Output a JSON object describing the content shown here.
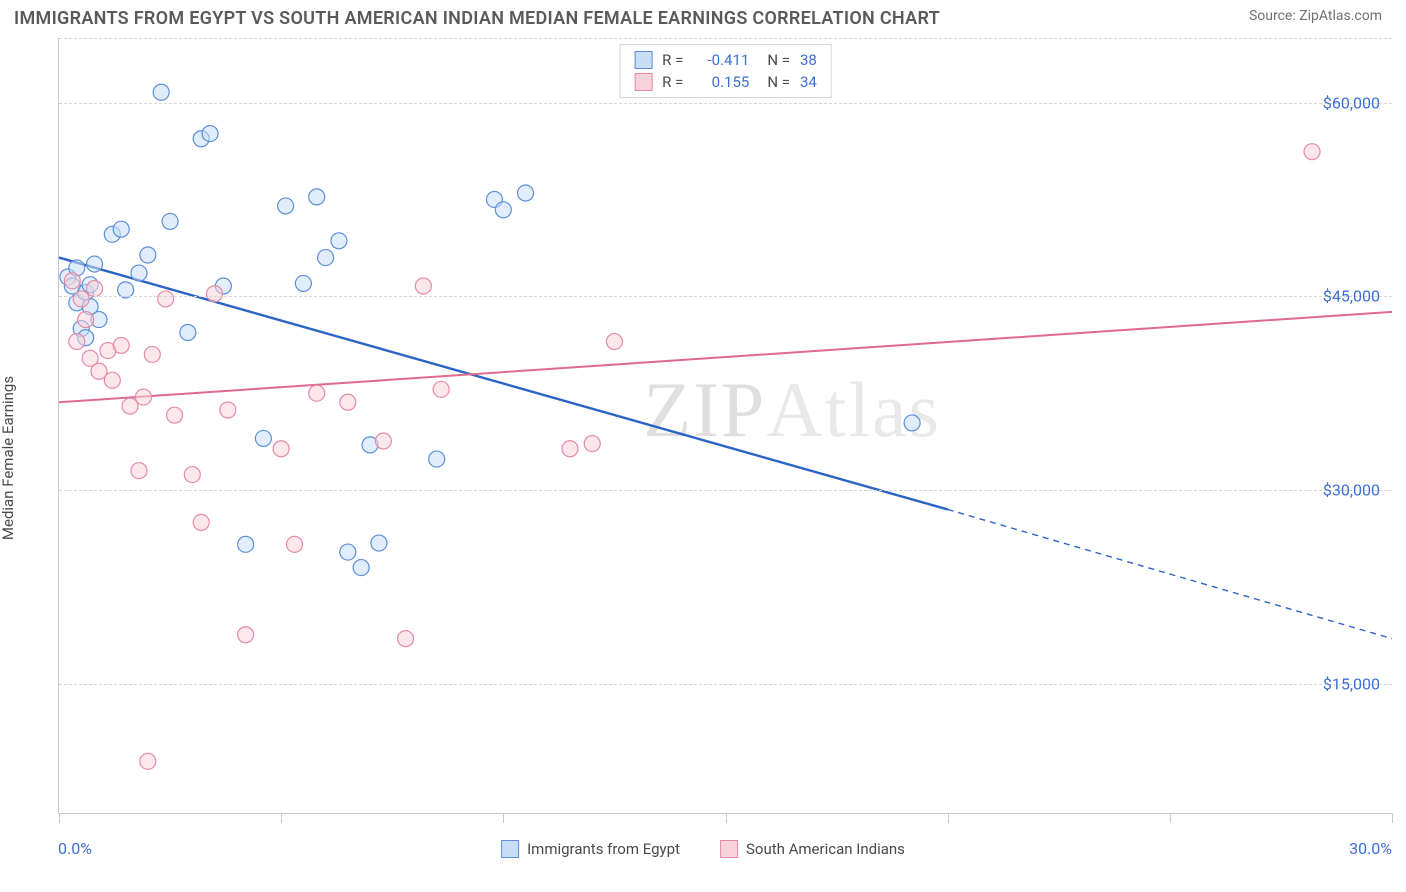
{
  "title": "IMMIGRANTS FROM EGYPT VS SOUTH AMERICAN INDIAN MEDIAN FEMALE EARNINGS CORRELATION CHART",
  "source": "Source: ZipAtlas.com",
  "watermark_zip": "ZIP",
  "watermark_atlas": "Atlas",
  "y_axis_label": "Median Female Earnings",
  "x_min_label": "0.0%",
  "x_max_label": "30.0%",
  "chart": {
    "type": "scatter",
    "xlim": [
      0,
      30
    ],
    "ylim": [
      5000,
      65000
    ],
    "y_gridlines": [
      15000,
      30000,
      45000,
      60000
    ],
    "y_tick_labels": [
      "$15,000",
      "$30,000",
      "$45,000",
      "$60,000"
    ],
    "x_ticks": [
      0,
      5,
      10,
      15,
      20,
      25,
      30
    ],
    "background_color": "#ffffff",
    "grid_color": "#d6d6d6",
    "axis_color": "#c8c8c8",
    "tick_label_color": "#3b6fd6",
    "marker_radius": 8,
    "marker_stroke_width": 1.2,
    "series": [
      {
        "name": "Immigrants from Egypt",
        "fill": "#c9def6",
        "stroke": "#5b8fd8",
        "fill_opacity": 0.55,
        "line_color": "#2c64c6",
        "line_width": 2.4,
        "R": "-0.411",
        "N": "38",
        "trend": {
          "x1": 0,
          "y1": 48000,
          "x2": 20,
          "y2": 28500,
          "x2_ext": 30,
          "y2_ext": 18500
        },
        "points": [
          [
            0.2,
            46500
          ],
          [
            0.3,
            45800
          ],
          [
            0.4,
            44500
          ],
          [
            0.4,
            47200
          ],
          [
            0.5,
            42500
          ],
          [
            0.6,
            45300
          ],
          [
            0.6,
            41800
          ],
          [
            0.7,
            44200
          ],
          [
            0.8,
            47500
          ],
          [
            0.9,
            43200
          ],
          [
            1.2,
            49800
          ],
          [
            1.4,
            50200
          ],
          [
            1.5,
            45500
          ],
          [
            1.8,
            46800
          ],
          [
            2.0,
            48200
          ],
          [
            2.3,
            60800
          ],
          [
            2.5,
            50800
          ],
          [
            2.9,
            42200
          ],
          [
            3.2,
            57200
          ],
          [
            3.4,
            57600
          ],
          [
            3.7,
            45800
          ],
          [
            4.2,
            25800
          ],
          [
            4.6,
            34000
          ],
          [
            5.1,
            52000
          ],
          [
            5.5,
            46000
          ],
          [
            5.8,
            52700
          ],
          [
            6.0,
            48000
          ],
          [
            6.3,
            49300
          ],
          [
            6.5,
            25200
          ],
          [
            6.8,
            24000
          ],
          [
            7.0,
            33500
          ],
          [
            7.2,
            25900
          ],
          [
            8.5,
            32400
          ],
          [
            9.8,
            52500
          ],
          [
            10.0,
            51700
          ],
          [
            10.5,
            53000
          ],
          [
            19.2,
            35200
          ],
          [
            0.7,
            45900
          ]
        ]
      },
      {
        "name": "South American Indians",
        "fill": "#f7d3dc",
        "stroke": "#e58aa5",
        "fill_opacity": 0.55,
        "line_color": "#e06a8e",
        "line_width": 2.0,
        "R": "0.155",
        "N": "34",
        "trend": {
          "x1": 0,
          "y1": 36800,
          "x2": 30,
          "y2": 43800
        },
        "points": [
          [
            0.3,
            46200
          ],
          [
            0.4,
            41500
          ],
          [
            0.5,
            44800
          ],
          [
            0.6,
            43200
          ],
          [
            0.7,
            40200
          ],
          [
            0.8,
            45600
          ],
          [
            0.9,
            39200
          ],
          [
            1.1,
            40800
          ],
          [
            1.2,
            38500
          ],
          [
            1.4,
            41200
          ],
          [
            1.6,
            36500
          ],
          [
            1.8,
            31500
          ],
          [
            1.9,
            37200
          ],
          [
            2.0,
            9000
          ],
          [
            2.1,
            40500
          ],
          [
            2.4,
            44800
          ],
          [
            2.6,
            35800
          ],
          [
            3.0,
            31200
          ],
          [
            3.2,
            27500
          ],
          [
            3.5,
            45200
          ],
          [
            3.8,
            36200
          ],
          [
            4.2,
            18800
          ],
          [
            5.0,
            33200
          ],
          [
            5.3,
            25800
          ],
          [
            5.8,
            37500
          ],
          [
            6.5,
            36800
          ],
          [
            7.3,
            33800
          ],
          [
            7.8,
            18500
          ],
          [
            8.2,
            45800
          ],
          [
            8.6,
            37800
          ],
          [
            11.5,
            33200
          ],
          [
            12.0,
            33600
          ],
          [
            12.5,
            41500
          ],
          [
            28.2,
            56200
          ]
        ]
      }
    ]
  },
  "legend_bottom": [
    {
      "label": "Immigrants from Egypt",
      "fill": "#c9def6",
      "stroke": "#5b8fd8"
    },
    {
      "label": "South American Indians",
      "fill": "#f7d3dc",
      "stroke": "#e58aa5"
    }
  ],
  "legend_top": [
    {
      "fill": "#c9def6",
      "stroke": "#5b8fd8",
      "R_label": "R =",
      "R": "-0.411",
      "N_label": "N =",
      "N": "38"
    },
    {
      "fill": "#f7d3dc",
      "stroke": "#e58aa5",
      "R_label": "R =",
      "R": "0.155",
      "N_label": "N =",
      "N": "34"
    }
  ]
}
